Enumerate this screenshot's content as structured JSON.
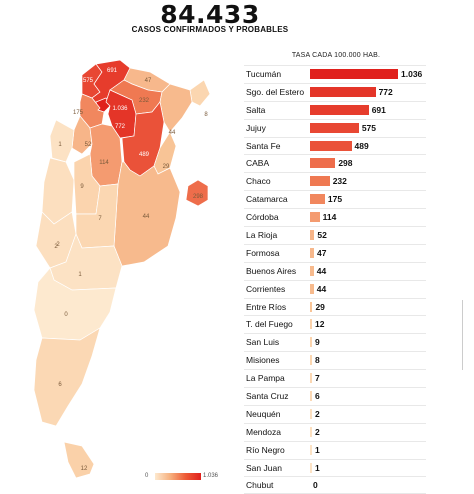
{
  "header": {
    "total": "84.433",
    "subtitle": "CASOS CONFIRMADOS Y PROBABLES"
  },
  "table_header": "TASA CADA 100.000 HAB.",
  "legend": {
    "min": "0",
    "max": "1.036"
  },
  "colors": {
    "scale_low": "#fde9cf",
    "scale_high": "#e0201c",
    "border": "#ffffff"
  },
  "map_labels": {
    "jujuy": "575",
    "salta": "691",
    "tucuman": "1.036",
    "formosa": "47",
    "chaco": "232",
    "santiago": "772",
    "misiones": "8",
    "corrientes": "44",
    "catamarca": "175",
    "la_rioja": "52",
    "san_juan": "1",
    "cordoba": "114",
    "santa_fe": "489",
    "entre_rios": "29",
    "caba": "298",
    "mendoza": "2",
    "san_luis": "9",
    "buenos_aires": "44",
    "la_pampa": "7",
    "neuquen": "2",
    "rio_negro": "1",
    "chubut": "0",
    "santa_cruz": "6",
    "tierra_del_fuego": "12"
  },
  "chart_data": {
    "type": "bar",
    "orientation": "horizontal",
    "title": "84.433",
    "subtitle": "CASOS CONFIRMADOS Y PROBABLES",
    "value_label": "TASA CADA 100.000 HAB.",
    "categories": [
      "Tucumán",
      "Sgo. del Estero",
      "Salta",
      "Jujuy",
      "Santa Fe",
      "CABA",
      "Chaco",
      "Catamarca",
      "Córdoba",
      "La Rioja",
      "Formosa",
      "Buenos Aires",
      "Corrientes",
      "Entre Ríos",
      "T. del Fuego",
      "San Luis",
      "Misiones",
      "La Pampa",
      "Santa Cruz",
      "Neuquén",
      "Mendoza",
      "Río Negro",
      "San Juan",
      "Chubut"
    ],
    "values": [
      1036,
      772,
      691,
      575,
      489,
      298,
      232,
      175,
      114,
      52,
      47,
      44,
      44,
      29,
      12,
      9,
      8,
      7,
      6,
      2,
      2,
      1,
      1,
      0
    ],
    "value_labels": [
      "1.036",
      "772",
      "691",
      "575",
      "489",
      "298",
      "232",
      "175",
      "114",
      "52",
      "47",
      "44",
      "44",
      "29",
      "12",
      "9",
      "8",
      "7",
      "6",
      "2",
      "2",
      "1",
      "1",
      "0"
    ],
    "xlim": [
      0,
      1036
    ]
  }
}
